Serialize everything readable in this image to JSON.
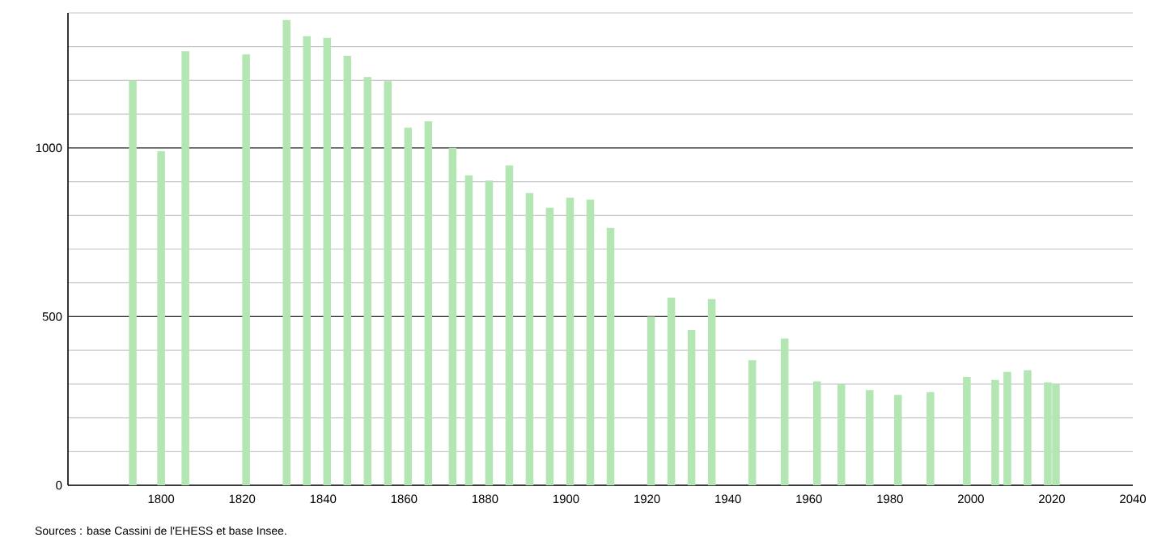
{
  "chart_data": {
    "type": "bar",
    "color": "#b3e6b3",
    "x": [
      1793,
      1800,
      1806,
      1821,
      1831,
      1836,
      1841,
      1846,
      1851,
      1856,
      1861,
      1866,
      1872,
      1876,
      1881,
      1886,
      1891,
      1896,
      1901,
      1906,
      1911,
      1921,
      1926,
      1931,
      1936,
      1946,
      1954,
      1962,
      1968,
      1975,
      1982,
      1990,
      1999,
      2006,
      2009,
      2014,
      2019,
      2021
    ],
    "values": [
      1200,
      990,
      1287,
      1277,
      1379,
      1331,
      1326,
      1273,
      1210,
      1198,
      1060,
      1079,
      1000,
      919,
      903,
      948,
      866,
      823,
      852,
      847,
      763,
      500,
      556,
      460,
      552,
      371,
      435,
      308,
      300,
      282,
      268,
      276,
      321,
      312,
      336,
      341,
      305,
      300
    ],
    "xlim": [
      1777,
      2040
    ],
    "xticks": [
      1800,
      1820,
      1840,
      1860,
      1880,
      1900,
      1920,
      1940,
      1960,
      1980,
      2000,
      2020,
      2040
    ],
    "ylim": [
      0,
      1400
    ],
    "yticks": [
      0,
      {
        "value": 100,
        "label": null
      },
      {
        "value": 200,
        "label": null
      },
      {
        "value": 300,
        "label": null
      },
      {
        "value": 400,
        "label": null
      },
      500,
      {
        "value": 600,
        "label": null
      },
      {
        "value": 700,
        "label": null
      },
      {
        "value": 800,
        "label": null
      },
      {
        "value": 900,
        "label": null
      },
      1000,
      {
        "value": 1100,
        "label": null
      },
      {
        "value": 1200,
        "label": null
      },
      {
        "value": 1300,
        "label": null
      },
      {
        "value": 1400,
        "label": null
      }
    ],
    "grid": "y",
    "annotations": [
      "Sources : base Cassini de l'EHESS et base Insee."
    ]
  }
}
